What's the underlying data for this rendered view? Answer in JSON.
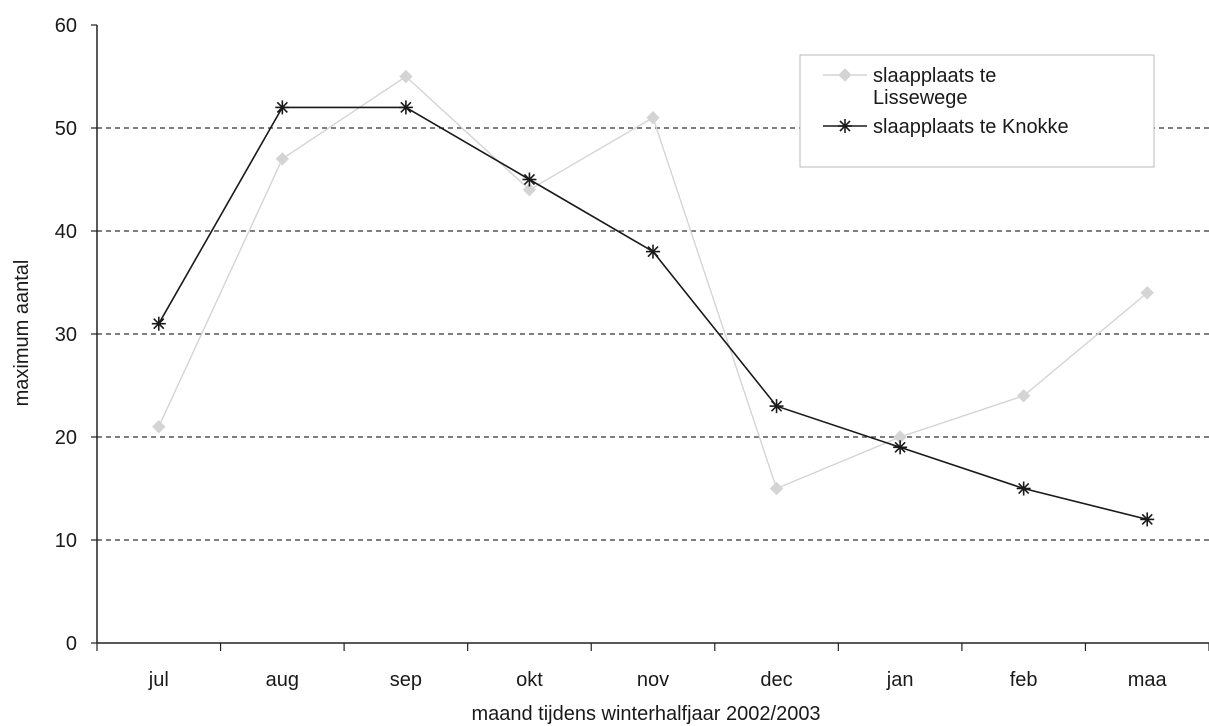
{
  "chart_data": {
    "type": "line",
    "categories": [
      "jul",
      "aug",
      "sep",
      "okt",
      "nov",
      "dec",
      "jan",
      "feb",
      "maa"
    ],
    "series": [
      {
        "name": "slaapplaats te Lissewege",
        "marker": "diamond",
        "color": "#d4d4d4",
        "values": [
          21,
          47,
          55,
          44,
          51,
          15,
          20,
          24,
          34
        ]
      },
      {
        "name": "slaapplaats te Knokke",
        "marker": "asterisk",
        "color": "#1a1a1a",
        "values": [
          31,
          52,
          52,
          45,
          38,
          23,
          19,
          15,
          12
        ]
      }
    ],
    "xlabel": "maand tijdens winterhalfjaar 2002/2003",
    "ylabel": "maximum aantal",
    "ylim": [
      0,
      60
    ],
    "yticks": [
      0,
      10,
      20,
      30,
      40,
      50,
      60
    ],
    "grid": true,
    "grid_style": "dashed",
    "legend_position": "top-right",
    "legend_lines": [
      [
        "slaapplaats te",
        "Lissewege"
      ],
      [
        "slaapplaats te Knokke"
      ]
    ]
  }
}
